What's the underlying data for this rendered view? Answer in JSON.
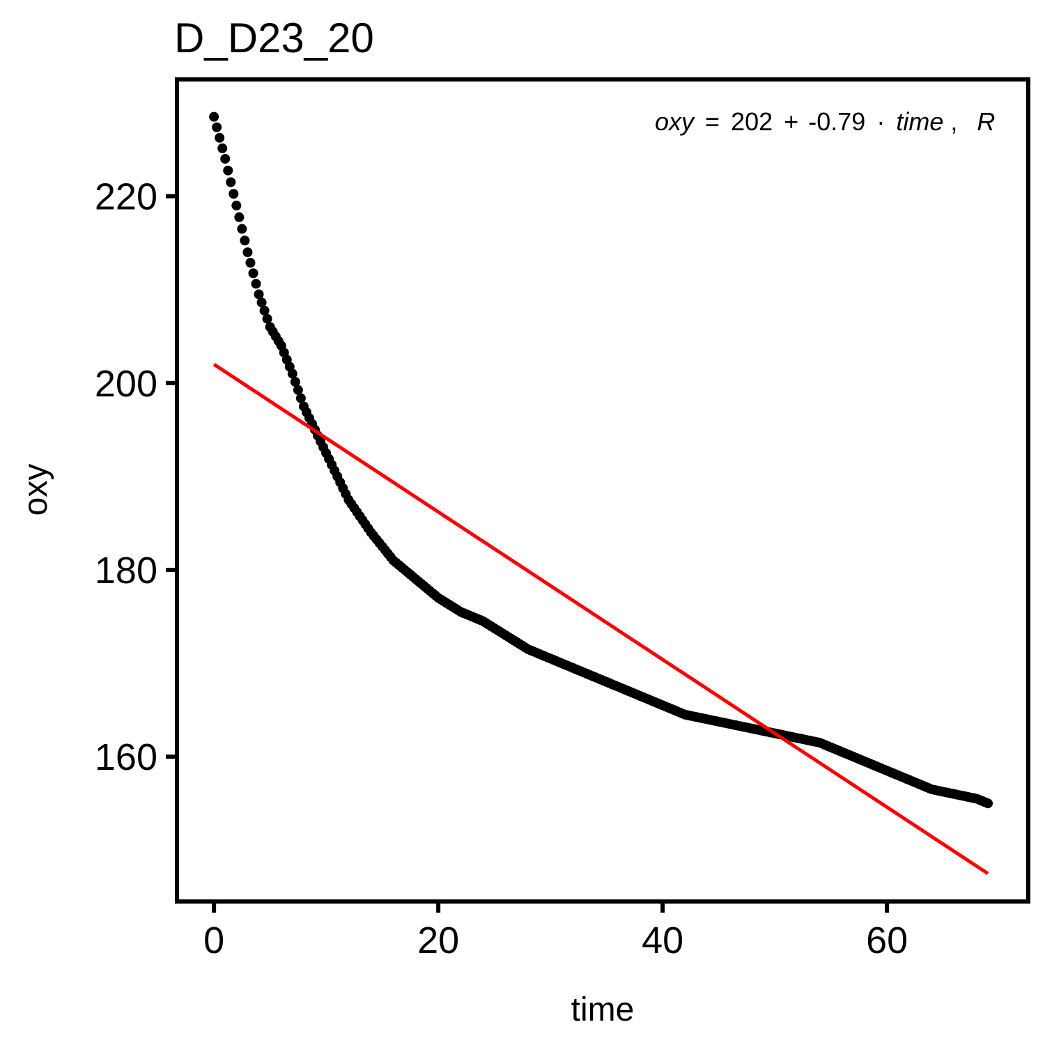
{
  "chart_data": {
    "type": "scatter",
    "title": "D_D23_20",
    "xlabel": "time",
    "ylabel": "oxy",
    "xlim": [
      -3.3,
      72.6
    ],
    "ylim": [
      144.5,
      232.5
    ],
    "x_ticks": [
      0,
      20,
      40,
      60
    ],
    "x_tick_labels": [
      "0",
      "20",
      "40",
      "60"
    ],
    "y_ticks": [
      160,
      180,
      200,
      220
    ],
    "y_tick_labels": [
      "160",
      "180",
      "200",
      "220"
    ],
    "grid": false,
    "legend": "none",
    "point_color": "#000000",
    "fit_color": "#ff0000",
    "points_anchor": {
      "x": [
        0,
        1,
        2,
        3,
        4,
        5,
        6,
        7,
        8,
        9,
        10,
        11,
        12,
        14,
        16,
        18,
        20,
        22,
        24,
        26,
        28,
        30,
        32,
        34,
        36,
        38,
        40,
        42,
        44,
        46,
        48,
        50,
        52,
        54,
        56,
        58,
        60,
        62,
        64,
        66,
        68,
        69
      ],
      "y": [
        228.5,
        224.0,
        219.0,
        214.0,
        209.5,
        206.0,
        204.0,
        201.0,
        197.5,
        195.0,
        192.5,
        190.0,
        187.5,
        184.0,
        181.0,
        179.0,
        177.0,
        175.5,
        174.5,
        173.0,
        171.5,
        170.5,
        169.5,
        168.5,
        167.5,
        166.5,
        165.5,
        164.5,
        164.0,
        163.5,
        163.0,
        162.5,
        162.0,
        161.5,
        160.5,
        159.5,
        158.5,
        157.5,
        156.5,
        156.0,
        155.5,
        155.0
      ]
    },
    "points_step": 0.25,
    "fit_line": {
      "intercept": 202,
      "slope": -0.79,
      "x_range": [
        0,
        69
      ]
    },
    "annotation": {
      "lhs": "oxy",
      "eq": "=",
      "intercept": "202",
      "plus": "+",
      "slope": "-0.79",
      "dot": "·",
      "var": "time",
      "comma": ",",
      "trailing": "R"
    }
  }
}
